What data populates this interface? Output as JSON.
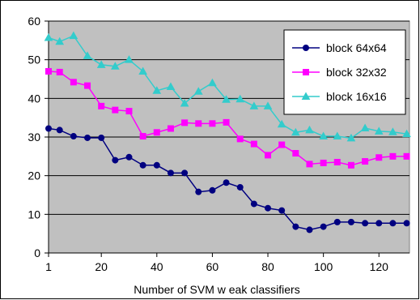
{
  "chart_data": {
    "type": "line",
    "title": "",
    "xlabel": "Number of SVM w eak classifiers",
    "ylabel": "",
    "xlim": [
      1,
      131
    ],
    "ylim": [
      0,
      60
    ],
    "x_ticks": [
      1,
      20,
      40,
      60,
      80,
      100,
      120
    ],
    "y_ticks": [
      0,
      10,
      20,
      30,
      40,
      50,
      60
    ],
    "grid": "horizontal",
    "legend_position": "top-right",
    "plot_background": "#c0c0c0",
    "x": [
      1,
      5,
      10,
      15,
      20,
      25,
      30,
      35,
      40,
      45,
      50,
      55,
      60,
      65,
      70,
      75,
      80,
      85,
      90,
      95,
      100,
      105,
      110,
      115,
      120,
      125,
      130
    ],
    "series": [
      {
        "name": "block 64x64",
        "color": "#000080",
        "marker": "circle",
        "values": [
          32.2,
          31.8,
          30.2,
          29.8,
          29.8,
          24.0,
          24.8,
          22.7,
          22.7,
          20.7,
          20.7,
          15.8,
          16.2,
          18.2,
          17.0,
          12.7,
          11.6,
          11.0,
          6.8,
          6.0,
          6.8,
          8.0,
          8.0,
          7.7,
          7.7,
          7.7,
          7.7
        ]
      },
      {
        "name": "block 32x32",
        "color": "#ff00ff",
        "marker": "square",
        "values": [
          47.0,
          46.8,
          44.2,
          43.3,
          38.0,
          37.0,
          36.7,
          30.2,
          31.2,
          32.2,
          33.7,
          33.5,
          33.5,
          33.8,
          29.5,
          28.2,
          25.3,
          28.0,
          25.8,
          23.0,
          23.3,
          23.5,
          22.7,
          23.7,
          24.7,
          25.0,
          25.0
        ]
      },
      {
        "name": "block 16x16",
        "color": "#33cccc",
        "marker": "triangle",
        "values": [
          55.7,
          54.7,
          56.2,
          51.0,
          48.7,
          48.3,
          50.0,
          47.0,
          42.0,
          43.0,
          38.7,
          41.8,
          44.0,
          39.7,
          39.8,
          38.0,
          38.0,
          33.3,
          31.2,
          31.8,
          30.2,
          30.2,
          29.7,
          32.3,
          31.5,
          31.3,
          30.8
        ]
      }
    ]
  }
}
